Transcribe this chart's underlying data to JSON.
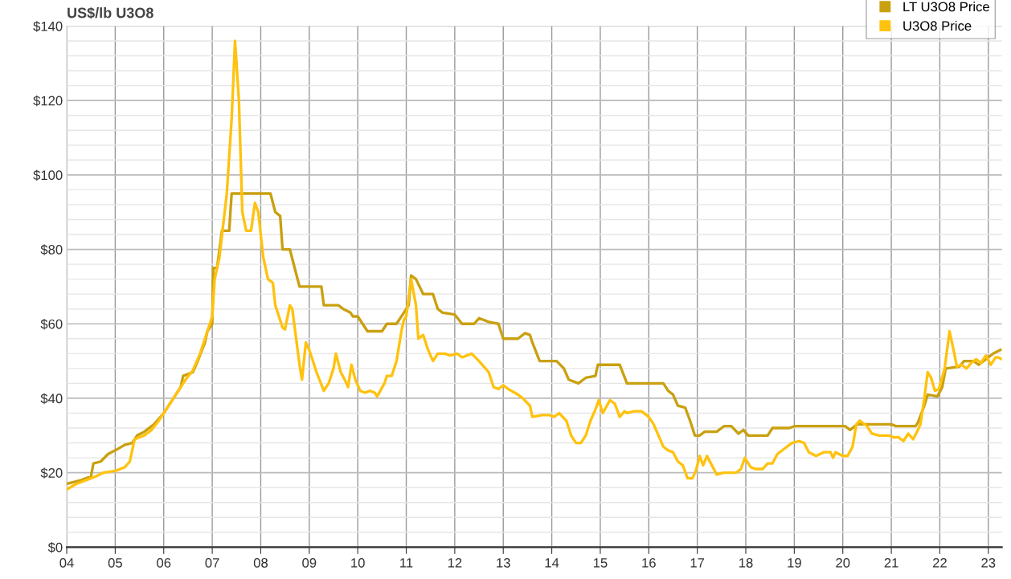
{
  "chart_data": {
    "type": "line",
    "ylabel": "US$/lb U3O8",
    "xlim": [
      2004,
      2023.28
    ],
    "ylim": [
      0,
      140
    ],
    "xticks": [
      {
        "value": 2004,
        "label": "04"
      },
      {
        "value": 2005,
        "label": "05"
      },
      {
        "value": 2006,
        "label": "06"
      },
      {
        "value": 2007,
        "label": "07"
      },
      {
        "value": 2008,
        "label": "08"
      },
      {
        "value": 2009,
        "label": "09"
      },
      {
        "value": 2010,
        "label": "10"
      },
      {
        "value": 2011,
        "label": "11"
      },
      {
        "value": 2012,
        "label": "12"
      },
      {
        "value": 2013,
        "label": "13"
      },
      {
        "value": 2014,
        "label": "14"
      },
      {
        "value": 2015,
        "label": "15"
      },
      {
        "value": 2016,
        "label": "16"
      },
      {
        "value": 2017,
        "label": "17"
      },
      {
        "value": 2018,
        "label": "18"
      },
      {
        "value": 2019,
        "label": "19"
      },
      {
        "value": 2020,
        "label": "20"
      },
      {
        "value": 2021,
        "label": "21"
      },
      {
        "value": 2022,
        "label": "22"
      },
      {
        "value": 2023,
        "label": "23"
      }
    ],
    "yticks": [
      {
        "value": 0,
        "label": "$0"
      },
      {
        "value": 4,
        "label": null
      },
      {
        "value": 8,
        "label": null
      },
      {
        "value": 12,
        "label": null
      },
      {
        "value": 16,
        "label": null
      },
      {
        "value": 20,
        "label": "$20"
      },
      {
        "value": 24,
        "label": null
      },
      {
        "value": 28,
        "label": null
      },
      {
        "value": 32,
        "label": null
      },
      {
        "value": 36,
        "label": null
      },
      {
        "value": 40,
        "label": "$40"
      },
      {
        "value": 44,
        "label": null
      },
      {
        "value": 48,
        "label": null
      },
      {
        "value": 52,
        "label": null
      },
      {
        "value": 56,
        "label": null
      },
      {
        "value": 60,
        "label": "$60"
      },
      {
        "value": 64,
        "label": null
      },
      {
        "value": 68,
        "label": null
      },
      {
        "value": 72,
        "label": null
      },
      {
        "value": 76,
        "label": null
      },
      {
        "value": 80,
        "label": "$80"
      },
      {
        "value": 84,
        "label": null
      },
      {
        "value": 88,
        "label": null
      },
      {
        "value": 92,
        "label": null
      },
      {
        "value": 96,
        "label": null
      },
      {
        "value": 100,
        "label": "$100"
      },
      {
        "value": 104,
        "label": null
      },
      {
        "value": 108,
        "label": null
      },
      {
        "value": 112,
        "label": null
      },
      {
        "value": 116,
        "label": null
      },
      {
        "value": 120,
        "label": "$120"
      },
      {
        "value": 124,
        "label": null
      },
      {
        "value": 128,
        "label": null
      },
      {
        "value": 132,
        "label": null
      },
      {
        "value": 136,
        "label": null
      },
      {
        "value": 140,
        "label": "$140"
      }
    ],
    "grid": true,
    "legend": "top right",
    "line_style": "solid",
    "marker": "none",
    "series": [
      {
        "name": "LT U3O8 Price",
        "color": "#c9a010",
        "x": [
          2004.0,
          2004.3,
          2004.5,
          2004.55,
          2004.7,
          2004.85,
          2005.0,
          2005.2,
          2005.35,
          2005.45,
          2005.6,
          2005.8,
          2006.0,
          2006.2,
          2006.35,
          2006.4,
          2006.6,
          2006.7,
          2006.85,
          2006.9,
          2007.0,
          2007.02,
          2007.1,
          2007.2,
          2007.35,
          2007.4,
          2008.2,
          2008.3,
          2008.4,
          2008.45,
          2008.6,
          2008.8,
          2009.25,
          2009.3,
          2009.6,
          2009.7,
          2009.85,
          2009.9,
          2010.0,
          2010.2,
          2010.5,
          2010.6,
          2010.8,
          2010.95,
          2011.05,
          2011.1,
          2011.2,
          2011.35,
          2011.55,
          2011.65,
          2011.75,
          2012.0,
          2012.15,
          2012.4,
          2012.5,
          2012.7,
          2012.9,
          2013.0,
          2013.3,
          2013.45,
          2013.55,
          2013.6,
          2013.75,
          2014.1,
          2014.25,
          2014.35,
          2014.55,
          2014.7,
          2014.9,
          2014.95,
          2015.4,
          2015.55,
          2016.3,
          2016.4,
          2016.5,
          2016.6,
          2016.75,
          2016.85,
          2016.95,
          2017.05,
          2017.15,
          2017.4,
          2017.55,
          2017.7,
          2017.85,
          2017.95,
          2018.05,
          2018.45,
          2018.55,
          2018.9,
          2019.0,
          2020.05,
          2020.15,
          2020.3,
          2021.0,
          2021.1,
          2021.5,
          2021.55,
          2021.68,
          2021.75,
          2021.95,
          2022.05,
          2022.12,
          2022.4,
          2022.5,
          2022.7,
          2022.8,
          2022.9,
          2023.0,
          2023.1,
          2023.25
        ],
        "values": [
          17,
          18,
          19,
          22.5,
          23,
          25,
          26,
          27.5,
          28,
          30,
          31,
          33,
          36,
          40,
          43,
          46,
          47,
          50,
          55,
          58,
          60,
          75,
          75,
          85,
          85,
          95,
          95,
          90,
          89,
          80,
          80,
          70,
          70,
          65,
          65,
          64,
          63,
          62,
          62,
          58,
          58,
          60,
          60,
          63,
          65,
          73,
          72,
          68,
          68,
          64,
          63,
          62.5,
          60,
          60,
          61.5,
          60.5,
          60,
          56,
          56,
          57.5,
          57,
          55,
          50,
          50,
          48,
          45,
          44,
          45.5,
          46,
          49,
          49,
          44,
          44,
          42,
          41,
          38,
          37.5,
          34,
          30,
          30,
          31,
          31,
          32.5,
          32.5,
          30.5,
          31.5,
          30,
          30,
          32,
          32,
          32.5,
          32.5,
          31.5,
          33,
          33,
          32.5,
          32.5,
          33.5,
          38,
          41,
          40.5,
          43,
          48,
          48.5,
          50,
          50,
          49,
          50,
          51,
          52,
          53
        ]
      },
      {
        "name": "U3O8 Price",
        "color": "#ffc20e",
        "x": [
          2004.0,
          2004.2,
          2004.4,
          2004.5,
          2004.6,
          2004.75,
          2005.0,
          2005.2,
          2005.3,
          2005.4,
          2005.6,
          2005.75,
          2005.9,
          2006.0,
          2006.15,
          2006.3,
          2006.45,
          2006.6,
          2006.75,
          2006.9,
          2007.0,
          2007.05,
          2007.15,
          2007.3,
          2007.4,
          2007.47,
          2007.55,
          2007.62,
          2007.7,
          2007.8,
          2007.88,
          2007.95,
          2008.05,
          2008.15,
          2008.25,
          2008.3,
          2008.45,
          2008.5,
          2008.6,
          2008.65,
          2008.8,
          2008.85,
          2008.93,
          2009.0,
          2009.15,
          2009.3,
          2009.4,
          2009.5,
          2009.55,
          2009.65,
          2009.75,
          2009.8,
          2009.87,
          2009.95,
          2010.05,
          2010.15,
          2010.25,
          2010.35,
          2010.4,
          2010.55,
          2010.6,
          2010.7,
          2010.8,
          2010.9,
          2010.95,
          2011.0,
          2011.1,
          2011.2,
          2011.25,
          2011.35,
          2011.45,
          2011.55,
          2011.65,
          2011.8,
          2011.9,
          2012.05,
          2012.15,
          2012.35,
          2012.5,
          2012.7,
          2012.8,
          2012.9,
          2013.0,
          2013.1,
          2013.3,
          2013.4,
          2013.55,
          2013.6,
          2013.8,
          2013.95,
          2014.05,
          2014.15,
          2014.3,
          2014.4,
          2014.5,
          2014.6,
          2014.7,
          2014.8,
          2014.9,
          2014.97,
          2015.05,
          2015.2,
          2015.3,
          2015.4,
          2015.5,
          2015.55,
          2015.7,
          2015.85,
          2016.0,
          2016.1,
          2016.2,
          2016.3,
          2016.4,
          2016.5,
          2016.6,
          2016.7,
          2016.8,
          2016.9,
          2016.97,
          2017.05,
          2017.12,
          2017.2,
          2017.3,
          2017.4,
          2017.55,
          2017.8,
          2017.9,
          2017.98,
          2018.1,
          2018.2,
          2018.35,
          2018.45,
          2018.55,
          2018.65,
          2018.8,
          2018.95,
          2019.1,
          2019.2,
          2019.3,
          2019.45,
          2019.6,
          2019.75,
          2019.8,
          2019.85,
          2020.0,
          2020.1,
          2020.2,
          2020.28,
          2020.35,
          2020.5,
          2020.6,
          2020.75,
          2020.95,
          2021.05,
          2021.15,
          2021.25,
          2021.35,
          2021.45,
          2021.55,
          2021.6,
          2021.68,
          2021.75,
          2021.82,
          2021.9,
          2021.98,
          2022.1,
          2022.2,
          2022.3,
          2022.35,
          2022.45,
          2022.55,
          2022.65,
          2022.75,
          2022.85,
          2022.95,
          2023.05,
          2023.1,
          2023.15,
          2023.2,
          2023.28
        ],
        "values": [
          15.5,
          17,
          18,
          18.5,
          19,
          20,
          20.5,
          21.5,
          23,
          29,
          30,
          31.5,
          34,
          36,
          39,
          42,
          45,
          47.5,
          52,
          58,
          62,
          72,
          78,
          95,
          115,
          136,
          120,
          90,
          85,
          85,
          92.5,
          90,
          78,
          72,
          71,
          65,
          59,
          58.5,
          65,
          64,
          49,
          45,
          55,
          53,
          47,
          42,
          44,
          48,
          52,
          47,
          44.5,
          43,
          49,
          45,
          42,
          41.5,
          42,
          41.5,
          40.5,
          44,
          46,
          46,
          50,
          58,
          61,
          62,
          72,
          65,
          56,
          57,
          53,
          50,
          52,
          52,
          51.5,
          52,
          51,
          52,
          50,
          47,
          43,
          42.5,
          43.5,
          42.5,
          41,
          40,
          38,
          35,
          35.5,
          35.5,
          35,
          36,
          34,
          30,
          28,
          28,
          30,
          34,
          37,
          39.5,
          36,
          39.5,
          38.5,
          35,
          36.5,
          36,
          36.5,
          36.5,
          35,
          33,
          30,
          27,
          26,
          25.5,
          23,
          22,
          18.5,
          18.5,
          20.5,
          24.5,
          22,
          24.5,
          22,
          19.5,
          20,
          20,
          21,
          24,
          21.5,
          21,
          21,
          22.5,
          22.5,
          25,
          26.5,
          28,
          28.5,
          28,
          25.5,
          24.5,
          25.5,
          25.5,
          24,
          25.5,
          24.5,
          24.5,
          27,
          33,
          34,
          32.5,
          30.5,
          30,
          30,
          29.5,
          29.5,
          28.5,
          30.5,
          29,
          31.5,
          33,
          40,
          47,
          45.5,
          42,
          42.5,
          48,
          58,
          52,
          48.5,
          49,
          48,
          49.5,
          50.5,
          49.5,
          51.5,
          49,
          50,
          51,
          51,
          50.5
        ]
      }
    ]
  }
}
